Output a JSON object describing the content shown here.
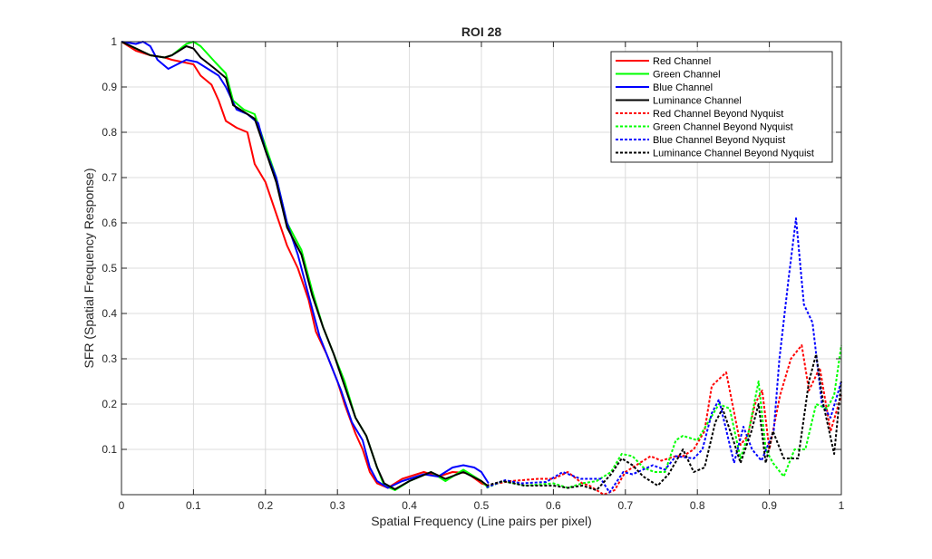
{
  "chart_data": {
    "type": "line",
    "title": "ROI 28",
    "xlabel": "Spatial Frequency (Line pairs per pixel)",
    "ylabel": "SFR (Spatial Frequency Response)",
    "xlim": [
      0,
      1
    ],
    "ylim": [
      0,
      1
    ],
    "xticks": [
      "0",
      "0.1",
      "0.2",
      "0.3",
      "0.4",
      "0.5",
      "0.6",
      "0.7",
      "0.8",
      "0.9",
      "1"
    ],
    "yticks": [
      "0.1",
      "0.2",
      "0.3",
      "0.4",
      "0.5",
      "0.6",
      "0.7",
      "0.8",
      "0.9",
      "1"
    ],
    "grid": true,
    "legend_position": "top-right",
    "series": [
      {
        "name": "Red Channel",
        "color": "#ff0000",
        "style": "solid",
        "x": [
          0,
          0.02,
          0.04,
          0.06,
          0.07,
          0.085,
          0.1,
          0.11,
          0.125,
          0.135,
          0.145,
          0.16,
          0.175,
          0.185,
          0.2,
          0.215,
          0.23,
          0.245,
          0.26,
          0.27,
          0.285,
          0.3,
          0.31,
          0.325,
          0.335,
          0.345,
          0.355,
          0.37,
          0.39,
          0.42,
          0.44,
          0.46,
          0.48,
          0.5,
          0.51
        ],
        "y": [
          1,
          0.98,
          0.97,
          0.965,
          0.96,
          0.955,
          0.95,
          0.925,
          0.905,
          0.87,
          0.825,
          0.81,
          0.8,
          0.73,
          0.69,
          0.62,
          0.55,
          0.5,
          0.43,
          0.36,
          0.31,
          0.25,
          0.2,
          0.135,
          0.1,
          0.05,
          0.025,
          0.015,
          0.035,
          0.05,
          0.04,
          0.05,
          0.048,
          0.025,
          0.02
        ]
      },
      {
        "name": "Green Channel",
        "color": "#00ff00",
        "style": "solid",
        "x": [
          0,
          0.02,
          0.04,
          0.06,
          0.07,
          0.09,
          0.1,
          0.11,
          0.13,
          0.145,
          0.155,
          0.17,
          0.185,
          0.2,
          0.215,
          0.23,
          0.25,
          0.265,
          0.28,
          0.295,
          0.31,
          0.325,
          0.34,
          0.355,
          0.365,
          0.38,
          0.4,
          0.43,
          0.45,
          0.475,
          0.5,
          0.51
        ],
        "y": [
          1,
          0.985,
          0.97,
          0.965,
          0.97,
          0.995,
          1.0,
          0.99,
          0.955,
          0.93,
          0.87,
          0.85,
          0.84,
          0.77,
          0.7,
          0.6,
          0.54,
          0.45,
          0.37,
          0.31,
          0.25,
          0.17,
          0.13,
          0.06,
          0.02,
          0.01,
          0.03,
          0.05,
          0.03,
          0.055,
          0.03,
          0.015
        ]
      },
      {
        "name": "Blue Channel",
        "color": "#0000ff",
        "style": "solid",
        "x": [
          0,
          0.02,
          0.03,
          0.04,
          0.05,
          0.065,
          0.09,
          0.105,
          0.12,
          0.135,
          0.145,
          0.16,
          0.175,
          0.19,
          0.2,
          0.215,
          0.23,
          0.245,
          0.26,
          0.275,
          0.29,
          0.305,
          0.32,
          0.335,
          0.345,
          0.355,
          0.37,
          0.39,
          0.42,
          0.44,
          0.46,
          0.475,
          0.49,
          0.5,
          0.51
        ],
        "y": [
          1,
          0.995,
          1.0,
          0.99,
          0.96,
          0.94,
          0.96,
          0.955,
          0.94,
          0.925,
          0.9,
          0.85,
          0.84,
          0.82,
          0.76,
          0.7,
          0.6,
          0.53,
          0.44,
          0.35,
          0.29,
          0.23,
          0.16,
          0.12,
          0.06,
          0.03,
          0.015,
          0.03,
          0.045,
          0.04,
          0.06,
          0.065,
          0.06,
          0.05,
          0.025
        ]
      },
      {
        "name": "Luminance Channel",
        "color": "#000000",
        "style": "solid",
        "x": [
          0,
          0.02,
          0.04,
          0.06,
          0.07,
          0.09,
          0.1,
          0.11,
          0.13,
          0.145,
          0.155,
          0.17,
          0.185,
          0.2,
          0.215,
          0.23,
          0.25,
          0.265,
          0.28,
          0.295,
          0.31,
          0.325,
          0.34,
          0.355,
          0.365,
          0.38,
          0.4,
          0.43,
          0.45,
          0.475,
          0.5,
          0.51
        ],
        "y": [
          1,
          0.985,
          0.97,
          0.965,
          0.97,
          0.99,
          0.985,
          0.965,
          0.94,
          0.92,
          0.86,
          0.845,
          0.83,
          0.76,
          0.69,
          0.59,
          0.53,
          0.44,
          0.37,
          0.31,
          0.24,
          0.17,
          0.13,
          0.06,
          0.025,
          0.012,
          0.03,
          0.05,
          0.035,
          0.05,
          0.03,
          0.018
        ]
      },
      {
        "name": "Red Channel Beyond Nyquist",
        "color": "#ff0000",
        "style": "dotted",
        "x": [
          0.507,
          0.54,
          0.58,
          0.6,
          0.62,
          0.64,
          0.65,
          0.67,
          0.685,
          0.7,
          0.72,
          0.735,
          0.75,
          0.77,
          0.78,
          0.795,
          0.81,
          0.82,
          0.84,
          0.86,
          0.87,
          0.88,
          0.89,
          0.9,
          0.915,
          0.93,
          0.945,
          0.955,
          0.97,
          0.985,
          1.0
        ],
        "y": [
          0.02,
          0.03,
          0.035,
          0.035,
          0.05,
          0.025,
          0.02,
          0.0,
          0.01,
          0.05,
          0.07,
          0.085,
          0.075,
          0.085,
          0.085,
          0.1,
          0.14,
          0.24,
          0.27,
          0.11,
          0.13,
          0.2,
          0.23,
          0.1,
          0.22,
          0.3,
          0.33,
          0.23,
          0.28,
          0.14,
          0.22
        ]
      },
      {
        "name": "Green Channel Beyond Nyquist",
        "color": "#00ff00",
        "style": "dotted",
        "x": [
          0.507,
          0.53,
          0.56,
          0.6,
          0.62,
          0.64,
          0.66,
          0.68,
          0.695,
          0.71,
          0.725,
          0.74,
          0.755,
          0.77,
          0.78,
          0.8,
          0.83,
          0.845,
          0.86,
          0.87,
          0.885,
          0.895,
          0.905,
          0.92,
          0.935,
          0.95,
          0.965,
          0.98,
          0.99,
          1.0
        ],
        "y": [
          0.015,
          0.03,
          0.02,
          0.025,
          0.015,
          0.025,
          0.03,
          0.05,
          0.09,
          0.085,
          0.06,
          0.05,
          0.05,
          0.12,
          0.13,
          0.12,
          0.2,
          0.19,
          0.08,
          0.13,
          0.25,
          0.1,
          0.07,
          0.04,
          0.1,
          0.1,
          0.2,
          0.19,
          0.22,
          0.33
        ]
      },
      {
        "name": "Blue Channel Beyond Nyquist",
        "color": "#0000ff",
        "style": "dotted",
        "x": [
          0.507,
          0.533,
          0.555,
          0.59,
          0.613,
          0.638,
          0.666,
          0.678,
          0.697,
          0.71,
          0.738,
          0.755,
          0.77,
          0.795,
          0.807,
          0.82,
          0.83,
          0.851,
          0.864,
          0.876,
          0.889,
          0.906,
          0.914,
          0.927,
          0.937,
          0.948,
          0.96,
          0.973,
          0.985,
          1.0
        ],
        "y": [
          0.016,
          0.032,
          0.025,
          0.028,
          0.05,
          0.035,
          0.035,
          0.005,
          0.05,
          0.045,
          0.065,
          0.055,
          0.085,
          0.08,
          0.1,
          0.18,
          0.21,
          0.07,
          0.15,
          0.1,
          0.075,
          0.14,
          0.3,
          0.48,
          0.61,
          0.42,
          0.38,
          0.2,
          0.17,
          0.25
        ]
      },
      {
        "name": "Luminance Channel Beyond Nyquist",
        "color": "#000000",
        "style": "dotted",
        "x": [
          0.507,
          0.53,
          0.56,
          0.6,
          0.62,
          0.64,
          0.66,
          0.68,
          0.695,
          0.71,
          0.725,
          0.745,
          0.76,
          0.78,
          0.795,
          0.81,
          0.825,
          0.835,
          0.85,
          0.86,
          0.875,
          0.885,
          0.895,
          0.905,
          0.92,
          0.94,
          0.955,
          0.965,
          0.975,
          0.99,
          1.0
        ],
        "y": [
          0.02,
          0.03,
          0.02,
          0.02,
          0.015,
          0.02,
          0.01,
          0.045,
          0.08,
          0.065,
          0.04,
          0.02,
          0.045,
          0.1,
          0.05,
          0.06,
          0.16,
          0.19,
          0.12,
          0.07,
          0.14,
          0.2,
          0.07,
          0.14,
          0.08,
          0.08,
          0.25,
          0.31,
          0.2,
          0.09,
          0.25
        ]
      }
    ]
  }
}
